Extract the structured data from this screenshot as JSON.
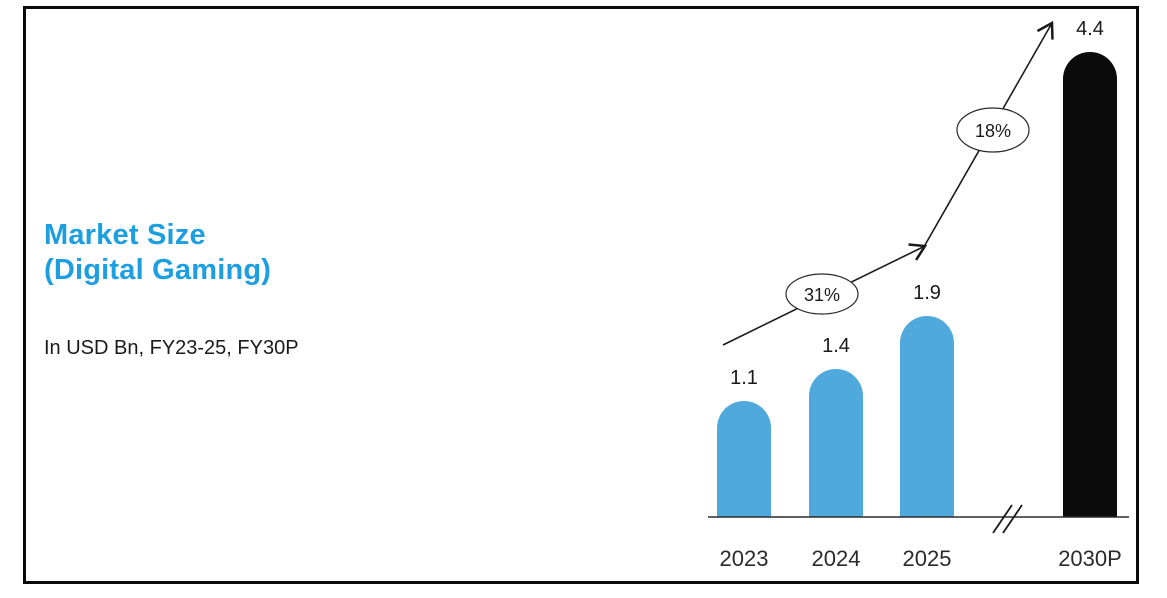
{
  "header": {
    "title_line1": "Market Size",
    "title_line2": "(Digital Gaming)",
    "subtitle": "In USD Bn, FY23-25, FY30P"
  },
  "colors": {
    "title_blue": "#1C9EE0",
    "bar_blue": "#4FA9DC",
    "bar_black": "#0B0B0B",
    "axis": "#2b2b2b",
    "annotation_stroke": "#2b2b2b",
    "frame_border": "#0a0a0a"
  },
  "chart_data": {
    "type": "bar",
    "title": "Market Size (Digital Gaming)",
    "units": "In USD Bn, FY23-25, FY30P",
    "categories": [
      "2023",
      "2024",
      "2025",
      "2030P"
    ],
    "values": [
      1.1,
      1.4,
      1.9,
      4.4
    ],
    "value_labels": [
      "1.1",
      "1.4",
      "1.9",
      "4.4"
    ],
    "bar_color_keys": [
      "bar_blue",
      "bar_blue",
      "bar_blue",
      "bar_black"
    ],
    "annotations": [
      {
        "label": "31%"
      },
      {
        "label": "18%"
      }
    ],
    "axis_break_between": [
      "2025",
      "2030P"
    ],
    "xlabel": "",
    "ylabel": "",
    "grid": false,
    "legend": null
  }
}
